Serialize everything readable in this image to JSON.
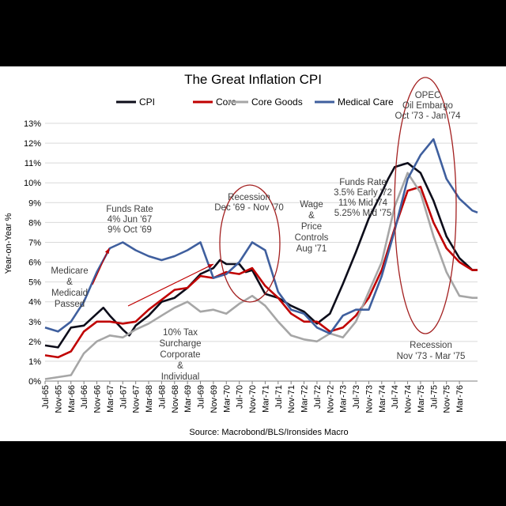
{
  "chart_data": {
    "type": "line",
    "title": "The Great Inflation CPI",
    "ylabel": "Year-on-Year %",
    "xlabel": "",
    "ylim": [
      0,
      13
    ],
    "yticks": [
      "0%",
      "1%",
      "2%",
      "3%",
      "4%",
      "5%",
      "6%",
      "7%",
      "8%",
      "9%",
      "10%",
      "11%",
      "12%",
      "13%"
    ],
    "x_tick_labels": [
      "Jul-65",
      "Nov-65",
      "Mar-66",
      "Jul-66",
      "Nov-66",
      "Mar-67",
      "Jul-67",
      "Nov-67",
      "Mar-68",
      "Jul-68",
      "Nov-68",
      "Mar-69",
      "Jul-69",
      "Nov-69",
      "Mar-70",
      "Jul-70",
      "Nov-70",
      "Mar-71",
      "Jul-71",
      "Nov-71",
      "Mar-72",
      "Jul-72",
      "Nov-72",
      "Mar-73",
      "Jul-73",
      "Nov-73",
      "Mar-74",
      "Jul-74",
      "Nov-74",
      "Mar-75",
      "Jul-75",
      "Nov-75",
      "Mar-76"
    ],
    "x_start": 0,
    "x_end": 33.4,
    "series": [
      {
        "name": "CPI",
        "color": "#0d0d1a",
        "points": [
          [
            0,
            1.8
          ],
          [
            1,
            1.7
          ],
          [
            2,
            2.7
          ],
          [
            3,
            2.8
          ],
          [
            4,
            3.4
          ],
          [
            4.5,
            3.7
          ],
          [
            5,
            3.3
          ],
          [
            6,
            2.6
          ],
          [
            6.5,
            2.3
          ],
          [
            7,
            2.8
          ],
          [
            8,
            3.3
          ],
          [
            9,
            4.0
          ],
          [
            10,
            4.2
          ],
          [
            11,
            4.7
          ],
          [
            12,
            5.4
          ],
          [
            13,
            5.7
          ],
          [
            13.5,
            6.1
          ],
          [
            14,
            5.9
          ],
          [
            15,
            5.9
          ],
          [
            15.5,
            5.5
          ],
          [
            16,
            5.6
          ],
          [
            17,
            4.4
          ],
          [
            18,
            4.2
          ],
          [
            19,
            3.8
          ],
          [
            20,
            3.5
          ],
          [
            21,
            2.9
          ],
          [
            22,
            3.4
          ],
          [
            23,
            4.9
          ],
          [
            24,
            6.5
          ],
          [
            25,
            8.2
          ],
          [
            26,
            9.5
          ],
          [
            26.5,
            10.2
          ],
          [
            27,
            10.8
          ],
          [
            28,
            11.0
          ],
          [
            29,
            10.5
          ],
          [
            30,
            9.1
          ],
          [
            31,
            7.3
          ],
          [
            32,
            6.2
          ],
          [
            32.5,
            5.9
          ],
          [
            33,
            5.6
          ],
          [
            33.4,
            5.6
          ]
        ]
      },
      {
        "name": "Core",
        "color": "#c00000",
        "points": [
          [
            0,
            1.3
          ],
          [
            1,
            1.2
          ],
          [
            2,
            1.5
          ],
          [
            3,
            2.5
          ],
          [
            4,
            3.0
          ],
          [
            5,
            3.0
          ],
          [
            6,
            2.9
          ],
          [
            7,
            3.0
          ],
          [
            8,
            3.6
          ],
          [
            9,
            4.1
          ],
          [
            10,
            4.6
          ],
          [
            11,
            4.7
          ],
          [
            12,
            5.3
          ],
          [
            13,
            5.2
          ],
          [
            14,
            5.5
          ],
          [
            15,
            5.4
          ],
          [
            16,
            5.7
          ],
          [
            17,
            4.8
          ],
          [
            18,
            4.2
          ],
          [
            19,
            3.4
          ],
          [
            20,
            3.0
          ],
          [
            21,
            3.0
          ],
          [
            22,
            2.5
          ],
          [
            23,
            2.7
          ],
          [
            24,
            3.3
          ],
          [
            25,
            4.2
          ],
          [
            26,
            5.6
          ],
          [
            27,
            7.7
          ],
          [
            28,
            9.6
          ],
          [
            29,
            9.8
          ],
          [
            30,
            8.0
          ],
          [
            31,
            6.7
          ],
          [
            32,
            6.0
          ],
          [
            33,
            5.6
          ],
          [
            33.4,
            5.6
          ]
        ]
      },
      {
        "name": "Core Goods",
        "color": "#a6a6a6",
        "points": [
          [
            0,
            0.1
          ],
          [
            1,
            0.2
          ],
          [
            2,
            0.3
          ],
          [
            3,
            1.4
          ],
          [
            4,
            2.0
          ],
          [
            5,
            2.3
          ],
          [
            6,
            2.2
          ],
          [
            7,
            2.6
          ],
          [
            8,
            2.9
          ],
          [
            9,
            3.3
          ],
          [
            10,
            3.7
          ],
          [
            11,
            4.0
          ],
          [
            12,
            3.5
          ],
          [
            13,
            3.6
          ],
          [
            14,
            3.4
          ],
          [
            15,
            3.9
          ],
          [
            16,
            4.3
          ],
          [
            17,
            3.8
          ],
          [
            18,
            3.0
          ],
          [
            19,
            2.3
          ],
          [
            20,
            2.1
          ],
          [
            21,
            2.0
          ],
          [
            22,
            2.4
          ],
          [
            23,
            2.2
          ],
          [
            24,
            3.0
          ],
          [
            25,
            4.5
          ],
          [
            26,
            6.0
          ],
          [
            27,
            8.8
          ],
          [
            28,
            10.5
          ],
          [
            29,
            9.5
          ],
          [
            30,
            7.3
          ],
          [
            31,
            5.5
          ],
          [
            32,
            4.3
          ],
          [
            33,
            4.2
          ],
          [
            33.4,
            4.2
          ]
        ]
      },
      {
        "name": "Medical Care",
        "color": "#3f5f9e",
        "points": [
          [
            0,
            2.7
          ],
          [
            1,
            2.5
          ],
          [
            2,
            3.0
          ],
          [
            3,
            4.0
          ],
          [
            4,
            5.5
          ],
          [
            5,
            6.7
          ],
          [
            6,
            7.0
          ],
          [
            7,
            6.6
          ],
          [
            8,
            6.3
          ],
          [
            9,
            6.1
          ],
          [
            10,
            6.3
          ],
          [
            11,
            6.6
          ],
          [
            12,
            7.0
          ],
          [
            13,
            5.2
          ],
          [
            14,
            5.4
          ],
          [
            15,
            6.0
          ],
          [
            16,
            7.0
          ],
          [
            17,
            6.6
          ],
          [
            18,
            4.5
          ],
          [
            19,
            3.6
          ],
          [
            20,
            3.4
          ],
          [
            21,
            2.7
          ],
          [
            22,
            2.4
          ],
          [
            23,
            3.3
          ],
          [
            24,
            3.6
          ],
          [
            25,
            3.6
          ],
          [
            26,
            5.3
          ],
          [
            27,
            7.6
          ],
          [
            28,
            10.2
          ],
          [
            29,
            11.4
          ],
          [
            30,
            12.2
          ],
          [
            31,
            10.2
          ],
          [
            32,
            9.2
          ],
          [
            33,
            8.6
          ],
          [
            33.4,
            8.5
          ]
        ]
      }
    ],
    "annotations": [
      {
        "id": "recession-1969",
        "lines": [
          "Recession",
          "Dec '69 - Nov '70"
        ]
      },
      {
        "id": "wage-price-controls",
        "lines": [
          "Wage",
          "&",
          "Price",
          "Controls",
          "Aug '71"
        ]
      },
      {
        "id": "funds-rate-1967",
        "lines": [
          "Funds Rate",
          "4% Jun '67",
          "9% Oct '69"
        ]
      },
      {
        "id": "medicare",
        "lines": [
          "Medicare",
          "&",
          "Medicaid",
          "Passed"
        ]
      },
      {
        "id": "tax-surcharge",
        "lines": [
          "10% Tax",
          "Surcharge",
          "Corporate",
          "&",
          "Individual"
        ]
      },
      {
        "id": "funds-rate-1972",
        "lines": [
          "Funds Rate",
          "3.5% Early '72",
          "11% Mid '74",
          "5.25% Mid '75"
        ]
      },
      {
        "id": "opec",
        "lines": [
          "OPEC",
          "Oil Embargo",
          "Oct '73 - Jan '74"
        ]
      },
      {
        "id": "recession-1973",
        "lines": [
          "Recession",
          "Nov '73 - Mar '75"
        ]
      }
    ],
    "source": "Source: Macrobond/BLS/Ironsides Macro"
  }
}
